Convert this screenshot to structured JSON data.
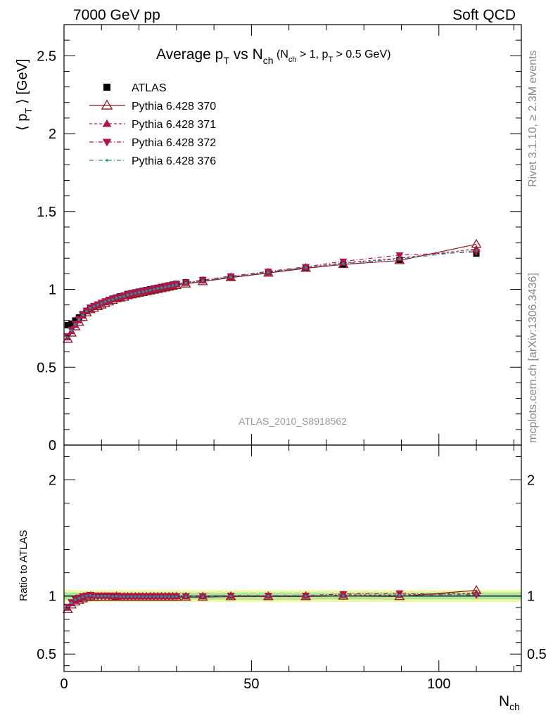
{
  "header": {
    "energy_label": "7000 GeV pp",
    "category_label": "Soft QCD"
  },
  "side_labels": {
    "rivet": "Rivet 3.1.10, ≥ 2.3M events",
    "mcplots": "mcplots.cern.ch [arXiv:1306.3436]"
  },
  "chart_data": [
    {
      "type": "scatter",
      "title_main": "Average p",
      "title_sub": "T",
      "title_vs": " vs N",
      "title_vs_sub": "ch",
      "title_cut_a": " (N",
      "title_cut_a_sub": "ch",
      "title_cut_b": " > 1, p",
      "title_cut_b_sub": "T",
      "title_cut_c": " > 0.5 GeV)",
      "ylabel_open": "⟨ p",
      "ylabel_sub": "T",
      "ylabel_close": " ⟩ [GeV]",
      "watermark": "ATLAS_2010_S8918562",
      "xlim": [
        0,
        122
      ],
      "ylim": [
        0,
        2.7
      ],
      "yticks": [
        "0",
        "0.5",
        "1",
        "1.5",
        "2",
        "2.5"
      ],
      "legend_position": "top-left",
      "series": [
        {
          "name": "ATLAS",
          "color": "#000000",
          "style": "data-square",
          "x": [
            1,
            2,
            3,
            4,
            5,
            6,
            7,
            8,
            9,
            10,
            11,
            12,
            13,
            14,
            15,
            16,
            17,
            18,
            19,
            20,
            21,
            22,
            23,
            24,
            25,
            26,
            27,
            28,
            29,
            30,
            32.5,
            37,
            44.5,
            54.5,
            64.5,
            74.5,
            89.5,
            110
          ],
          "y": [
            0.77,
            0.78,
            0.8,
            0.82,
            0.84,
            0.86,
            0.875,
            0.89,
            0.9,
            0.91,
            0.92,
            0.93,
            0.94,
            0.945,
            0.955,
            0.96,
            0.97,
            0.975,
            0.98,
            0.985,
            0.99,
            0.995,
            1.0,
            1.005,
            1.01,
            1.015,
            1.02,
            1.025,
            1.03,
            1.035,
            1.045,
            1.06,
            1.08,
            1.11,
            1.14,
            1.16,
            1.19,
            1.23
          ]
        },
        {
          "name": "Pythia 6.428 370",
          "color": "#8b1a1a",
          "style": "solid-open-triangle",
          "x": [
            1,
            2,
            3,
            4,
            5,
            6,
            7,
            8,
            9,
            10,
            11,
            12,
            13,
            14,
            15,
            16,
            17,
            18,
            19,
            20,
            21,
            22,
            23,
            24,
            25,
            26,
            27,
            28,
            29,
            30,
            32.5,
            37,
            44.5,
            54.5,
            64.5,
            74.5,
            89.5,
            110
          ],
          "y": [
            0.68,
            0.72,
            0.76,
            0.79,
            0.82,
            0.85,
            0.87,
            0.88,
            0.89,
            0.9,
            0.91,
            0.92,
            0.93,
            0.94,
            0.945,
            0.95,
            0.96,
            0.965,
            0.97,
            0.975,
            0.98,
            0.985,
            0.99,
            0.995,
            1.0,
            1.005,
            1.01,
            1.015,
            1.02,
            1.025,
            1.035,
            1.05,
            1.075,
            1.105,
            1.135,
            1.16,
            1.185,
            1.29
          ]
        },
        {
          "name": "Pythia 6.428 371",
          "color": "#b0144f",
          "style": "dashed-filled-triangle",
          "x": [
            1,
            2,
            3,
            4,
            5,
            6,
            7,
            8,
            9,
            10,
            11,
            12,
            13,
            14,
            15,
            16,
            17,
            18,
            19,
            20,
            21,
            22,
            23,
            24,
            25,
            26,
            27,
            28,
            29,
            30,
            32.5,
            37,
            44.5,
            54.5,
            64.5,
            74.5,
            89.5,
            110
          ],
          "y": [
            0.69,
            0.73,
            0.77,
            0.8,
            0.83,
            0.86,
            0.88,
            0.89,
            0.9,
            0.91,
            0.92,
            0.93,
            0.935,
            0.945,
            0.95,
            0.955,
            0.965,
            0.97,
            0.975,
            0.98,
            0.985,
            0.99,
            0.995,
            1.0,
            1.005,
            1.01,
            1.015,
            1.02,
            1.025,
            1.03,
            1.04,
            1.055,
            1.08,
            1.11,
            1.14,
            1.17,
            1.2,
            1.26
          ]
        },
        {
          "name": "Pythia 6.428 372",
          "color": "#b0144f",
          "style": "dashdot-filled-down-triangle",
          "x": [
            1,
            2,
            3,
            4,
            5,
            6,
            7,
            8,
            9,
            10,
            11,
            12,
            13,
            14,
            15,
            16,
            17,
            18,
            19,
            20,
            21,
            22,
            23,
            24,
            25,
            26,
            27,
            28,
            29,
            30,
            32.5,
            37,
            44.5,
            54.5,
            64.5,
            74.5,
            89.5,
            110
          ],
          "y": [
            0.7,
            0.74,
            0.78,
            0.81,
            0.84,
            0.865,
            0.885,
            0.895,
            0.905,
            0.915,
            0.925,
            0.935,
            0.94,
            0.95,
            0.955,
            0.96,
            0.97,
            0.975,
            0.98,
            0.985,
            0.99,
            0.995,
            1.0,
            1.005,
            1.01,
            1.015,
            1.02,
            1.025,
            1.03,
            1.035,
            1.045,
            1.06,
            1.085,
            1.115,
            1.145,
            1.18,
            1.22,
            1.24
          ]
        },
        {
          "name": "Pythia 6.428 376",
          "color": "#1a9a8a",
          "style": "dashdot-small-dot",
          "x": [
            1,
            2,
            3,
            4,
            5,
            6,
            7,
            8,
            9,
            10,
            11,
            12,
            13,
            14,
            15,
            16,
            17,
            18,
            19,
            20,
            21,
            22,
            23,
            24,
            25,
            26,
            27,
            28,
            29,
            30,
            32.5,
            37,
            44.5,
            54.5,
            64.5,
            74.5,
            89.5,
            110
          ],
          "y": [
            0.695,
            0.735,
            0.775,
            0.805,
            0.835,
            0.86,
            0.88,
            0.89,
            0.9,
            0.91,
            0.92,
            0.93,
            0.935,
            0.945,
            0.95,
            0.955,
            0.965,
            0.97,
            0.975,
            0.98,
            0.985,
            0.99,
            0.995,
            1.0,
            1.005,
            1.01,
            1.015,
            1.02,
            1.025,
            1.03,
            1.04,
            1.055,
            1.08,
            1.11,
            1.14,
            1.165,
            1.195,
            1.25
          ]
        }
      ]
    },
    {
      "type": "scatter",
      "ylabel": "Ratio to ATLAS",
      "xlabel": "N",
      "xlabel_sub": "ch",
      "xlim": [
        0,
        122
      ],
      "ylim": [
        0.35,
        2.3
      ],
      "xticks": [
        "0",
        "50",
        "100"
      ],
      "yticks": [
        "0.5",
        "1",
        "2"
      ],
      "reference_line": 1.0,
      "band_outer": [
        0.95,
        1.05
      ],
      "band_inner": [
        0.97,
        1.03
      ]
    }
  ]
}
